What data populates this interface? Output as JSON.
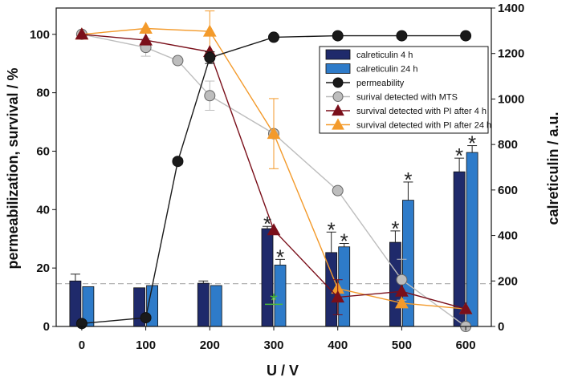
{
  "chart_data": {
    "type": "combo",
    "xlabel": "U / V",
    "ylabel_left": "permeabilization, survival / %",
    "ylabel_right": "calreticulin / a.u.",
    "x_ticks": [
      0,
      100,
      200,
      300,
      400,
      500,
      600
    ],
    "y_left_ticks": [
      0,
      20,
      40,
      60,
      80,
      100
    ],
    "y_right_ticks": [
      0,
      200,
      400,
      600,
      800,
      1000,
      1200,
      1400
    ],
    "xlim": [
      -40,
      640
    ],
    "ylim_left": [
      0,
      109
    ],
    "ylim_right": [
      0,
      1400
    ],
    "reference_line_right": 188,
    "colors": {
      "calreticulin_4h": "#1f2a6b",
      "calreticulin_24h": "#2e7bc9",
      "permeability": "#1a1a1a",
      "mts": "#bdbdbd",
      "pi_4h": "#7a0f1a",
      "pi_24h": "#f39a2b",
      "asterisk": "#222222",
      "asterisk_green": "#4cbb3a",
      "refline": "#aaaaaa"
    },
    "bar_series": [
      {
        "name": "calreticulin 4 h",
        "axis": "right",
        "x": [
          0,
          100,
          200,
          300,
          400,
          500,
          600
        ],
        "values": [
          200,
          170,
          190,
          430,
          325,
          370,
          680
        ],
        "errors": [
          30,
          0,
          10,
          10,
          90,
          50,
          60
        ],
        "significant": [
          false,
          false,
          false,
          true,
          true,
          true,
          true
        ]
      },
      {
        "name": "calreticulin 24 h",
        "axis": "right",
        "x": [
          0,
          100,
          200,
          300,
          400,
          500,
          600
        ],
        "values": [
          175,
          180,
          180,
          270,
          350,
          555,
          765
        ],
        "errors": [
          0,
          0,
          0,
          25,
          15,
          80,
          30
        ],
        "significant": [
          false,
          false,
          false,
          true,
          true,
          true,
          true
        ]
      }
    ],
    "line_series": [
      {
        "name": "permeability",
        "axis": "left",
        "marker": "circle",
        "x": [
          0,
          100,
          150,
          200,
          300,
          400,
          500,
          600
        ],
        "values": [
          1,
          3,
          56.5,
          92,
          99,
          99.5,
          99.5,
          99.5
        ],
        "errors": [
          0,
          0,
          1,
          2,
          0,
          0,
          0,
          0
        ]
      },
      {
        "name": "surival detected with MTS",
        "axis": "left",
        "marker": "circle",
        "x": [
          0,
          100,
          150,
          200,
          300,
          400,
          500,
          600
        ],
        "values": [
          100,
          95.5,
          91,
          79,
          66,
          46.5,
          16,
          0
        ],
        "errors": [
          0,
          3,
          0,
          5,
          0,
          0,
          7,
          0
        ]
      },
      {
        "name": "survival detected with PI after 4 h",
        "axis": "left",
        "marker": "triangle",
        "x": [
          0,
          100,
          200,
          300,
          400,
          500,
          600
        ],
        "values": [
          100,
          98,
          94,
          33,
          10,
          12,
          6
        ],
        "errors": [
          0,
          0,
          0,
          0,
          6,
          0,
          0
        ]
      },
      {
        "name": "survival detected with PI after 24 h",
        "axis": "left",
        "marker": "triangle",
        "x": [
          0,
          100,
          200,
          300,
          400,
          500,
          600
        ],
        "values": [
          100,
          102,
          101,
          66,
          13,
          8,
          6
        ],
        "errors": [
          0,
          0,
          7,
          12,
          0,
          0,
          0
        ]
      }
    ],
    "annotations": {
      "asterisk_symbol": "*",
      "green_asterisk": {
        "x": 300,
        "y_left": 9.5
      }
    },
    "legend": {
      "position": "top-right",
      "entries": [
        "calreticulin 4 h",
        "calreticulin 24 h",
        "permeability",
        "surival detected with MTS",
        "survival detected with PI after 4 h",
        "survival detected with PI after 24 h"
      ]
    }
  }
}
